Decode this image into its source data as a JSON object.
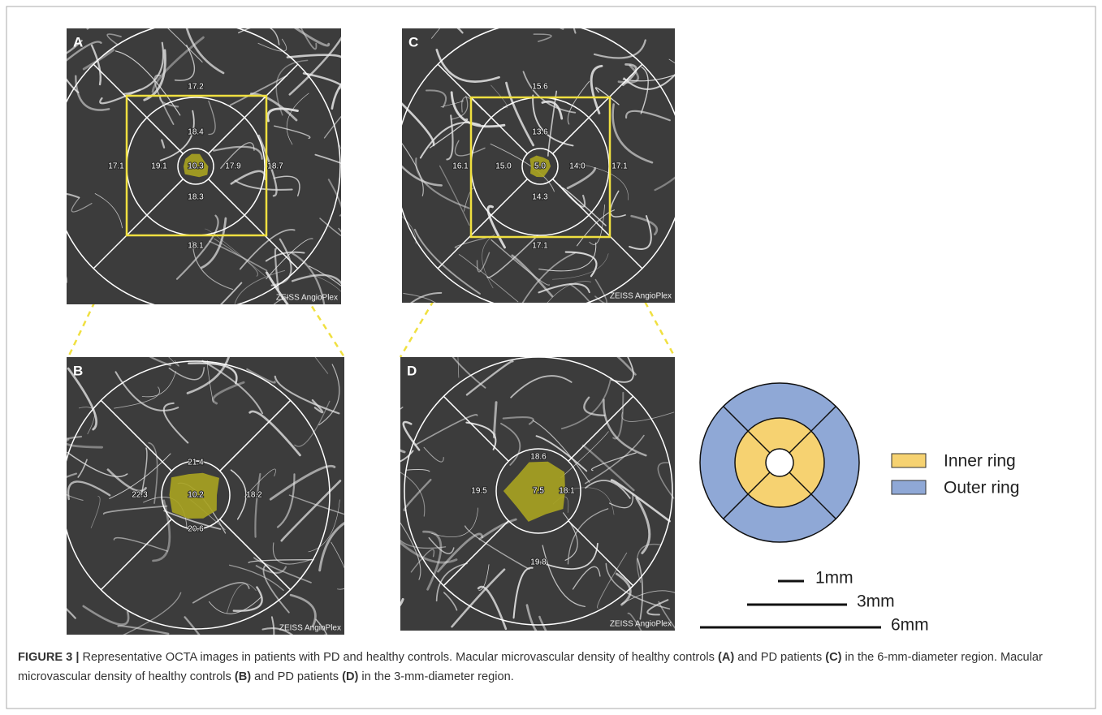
{
  "panels": [
    {
      "label": "A",
      "watermark": "ZEISS AngioPlex",
      "outer": [
        "17.2",
        "17.1",
        "18.7",
        "18.1"
      ],
      "inner": [
        "18.4",
        "19.1",
        "17.9",
        "18.3"
      ],
      "center": "10.3"
    },
    {
      "label": "B",
      "watermark": "ZEISS AngioPlex",
      "inner": [
        "21.4",
        "22.3",
        "18.2",
        "20.6"
      ],
      "center": "10.2"
    },
    {
      "label": "C",
      "watermark": "ZEISS AngioPlex",
      "outer": [
        "15.6",
        "16.1",
        "17.1",
        "17.1"
      ],
      "inner": [
        "13.6",
        "15.0",
        "14.0",
        "14.3"
      ],
      "center": "5.0"
    },
    {
      "label": "D",
      "watermark": "ZEISS AngioPlex",
      "inner": [
        "18.6",
        "19.5",
        "18.1",
        "19.8"
      ],
      "center": "7.5"
    }
  ],
  "legend": {
    "inner": "Inner ring",
    "outer": "Outer ring"
  },
  "scale": [
    "1mm",
    "3mm",
    "6mm"
  ],
  "caption": {
    "label": "FIGURE 3 |",
    "segments": [
      " Representative OCTA images in patients with PD and healthy controls. Macular microvascular density of healthy controls ",
      "(A)",
      " and PD patients ",
      "(C)",
      " in the 6-mm-diameter region. Macular microvascular density of healthy controls ",
      "(B)",
      " and PD patients ",
      "(D)",
      " in the 3-mm-diameter region."
    ]
  }
}
